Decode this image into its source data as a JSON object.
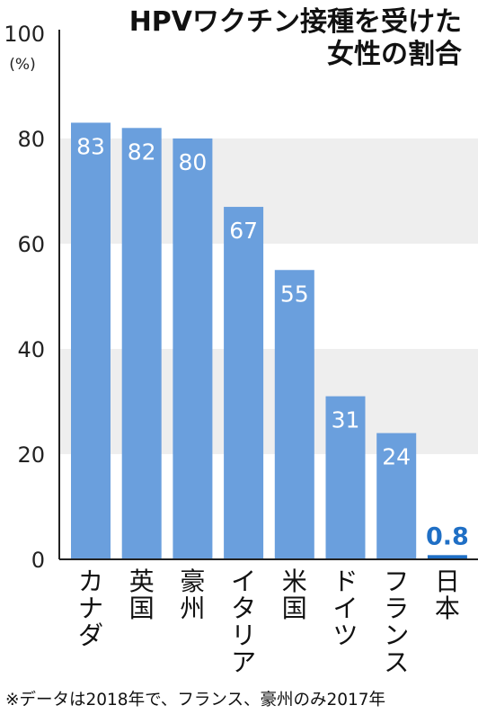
{
  "chart_data": {
    "type": "bar",
    "title": [
      "HPVワクチン接種を受けた",
      "女性の割合"
    ],
    "ylabel": "(%)",
    "ylim": [
      0,
      100
    ],
    "yticks": [
      0,
      20,
      40,
      60,
      80,
      100
    ],
    "grid_bands": true,
    "categories": [
      "カナダ",
      "英国",
      "豪州",
      "イタリア",
      "米国",
      "ドイツ",
      "フランス",
      "日本"
    ],
    "values": [
      83,
      82,
      80,
      67,
      55,
      31,
      24,
      0.8
    ],
    "value_labels": [
      "83",
      "82",
      "80",
      "67",
      "55",
      "31",
      "24",
      "0.8"
    ],
    "colors": {
      "bar": "#6a9fdd",
      "highlight_bar": "#1f6fc5",
      "highlight_label": "#1f6fc5",
      "band": "#eeeeee",
      "axis": "#222222"
    },
    "highlight": "日本",
    "footnote": "※データは2018年で、フランス、豪州のみ2017年"
  }
}
